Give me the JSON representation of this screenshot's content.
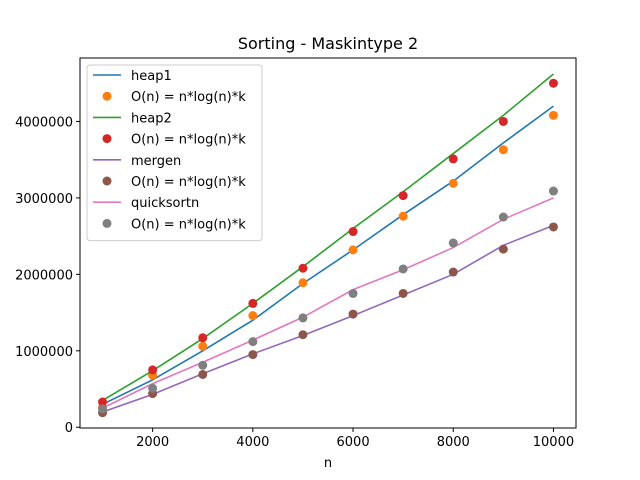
{
  "chart_data": {
    "type": "line",
    "title": "Sorting - Maskintype 2",
    "xlabel": "n",
    "ylabel": "",
    "x": [
      1000,
      2000,
      3000,
      4000,
      5000,
      6000,
      7000,
      8000,
      9000,
      10000
    ],
    "xlim": [
      550,
      10450
    ],
    "ylim": [
      -10000,
      4830000
    ],
    "xticks": [
      2000,
      4000,
      6000,
      8000,
      10000
    ],
    "yticks": [
      0,
      1000000,
      2000000,
      3000000,
      4000000
    ],
    "grid": false,
    "legend_position": "top-left",
    "series": [
      {
        "name": "heap1",
        "kind": "line",
        "color": "#1f77b4",
        "values": [
          300000,
          620000,
          1000000,
          1400000,
          1880000,
          2320000,
          2780000,
          3220000,
          3720000,
          4200000
        ]
      },
      {
        "name": "O(n) = n*log(n)*k",
        "kind": "scatter",
        "color": "#ff7f0e",
        "values": [
          260000,
          680000,
          1060000,
          1460000,
          1890000,
          2320000,
          2760000,
          3190000,
          3630000,
          4080000
        ]
      },
      {
        "name": "heap2",
        "kind": "line",
        "color": "#2ca02c",
        "values": [
          350000,
          740000,
          1160000,
          1620000,
          2100000,
          2600000,
          3080000,
          3580000,
          4080000,
          4620000
        ]
      },
      {
        "name": "O(n) = n*log(n)*k",
        "kind": "scatter",
        "color": "#d62728",
        "values": [
          330000,
          750000,
          1170000,
          1620000,
          2080000,
          2560000,
          3030000,
          3510000,
          4000000,
          4500000
        ]
      },
      {
        "name": "mergen",
        "kind": "line",
        "color": "#9467bd",
        "values": [
          200000,
          430000,
          700000,
          960000,
          1200000,
          1460000,
          1730000,
          2000000,
          2380000,
          2640000
        ]
      },
      {
        "name": "O(n) = n*log(n)*k",
        "kind": "scatter",
        "color": "#8c564b",
        "values": [
          190000,
          440000,
          690000,
          950000,
          1210000,
          1480000,
          1750000,
          2030000,
          2330000,
          2620000
        ]
      },
      {
        "name": "quicksortn",
        "kind": "line",
        "color": "#e377c2",
        "values": [
          250000,
          570000,
          850000,
          1140000,
          1440000,
          1800000,
          2060000,
          2350000,
          2720000,
          3000000
        ]
      },
      {
        "name": "O(n) = n*log(n)*k",
        "kind": "scatter",
        "color": "#7f7f7f",
        "values": [
          240000,
          510000,
          810000,
          1120000,
          1430000,
          1750000,
          2070000,
          2410000,
          2750000,
          3090000
        ]
      }
    ]
  }
}
